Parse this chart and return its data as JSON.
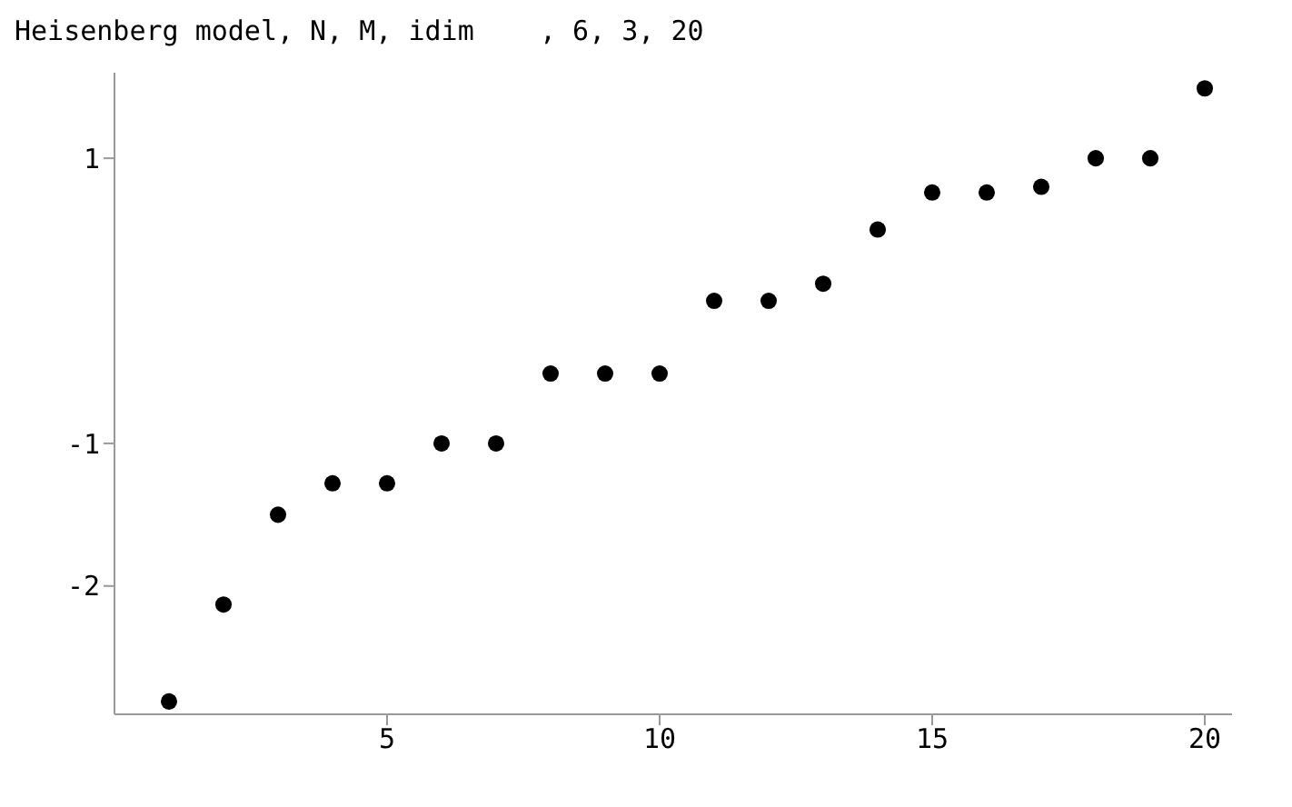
{
  "chart_data": {
    "type": "scatter",
    "title": "Heisenberg model, N, M, idim    , 6, 3, 20",
    "x": [
      1,
      2,
      3,
      4,
      5,
      6,
      7,
      8,
      9,
      10,
      11,
      12,
      13,
      14,
      15,
      16,
      17,
      18,
      19,
      20
    ],
    "series": [
      {
        "color": "#000000",
        "values": [
          -2.81,
          -2.13,
          -1.5,
          -1.28,
          -1.28,
          -1.0,
          -1.0,
          -0.51,
          -0.51,
          -0.51,
          0,
          0,
          0.12,
          0.5,
          0.76,
          0.76,
          0.8,
          1.0,
          1.0,
          1.49
        ]
      }
    ],
    "xlim": [
      0,
      20.5
    ],
    "xticks": [
      5,
      10,
      15,
      20
    ],
    "ylim": [
      -2.9,
      1.6
    ],
    "yticks": [
      -2,
      -1,
      1
    ],
    "marker": "circle",
    "grid": false
  }
}
